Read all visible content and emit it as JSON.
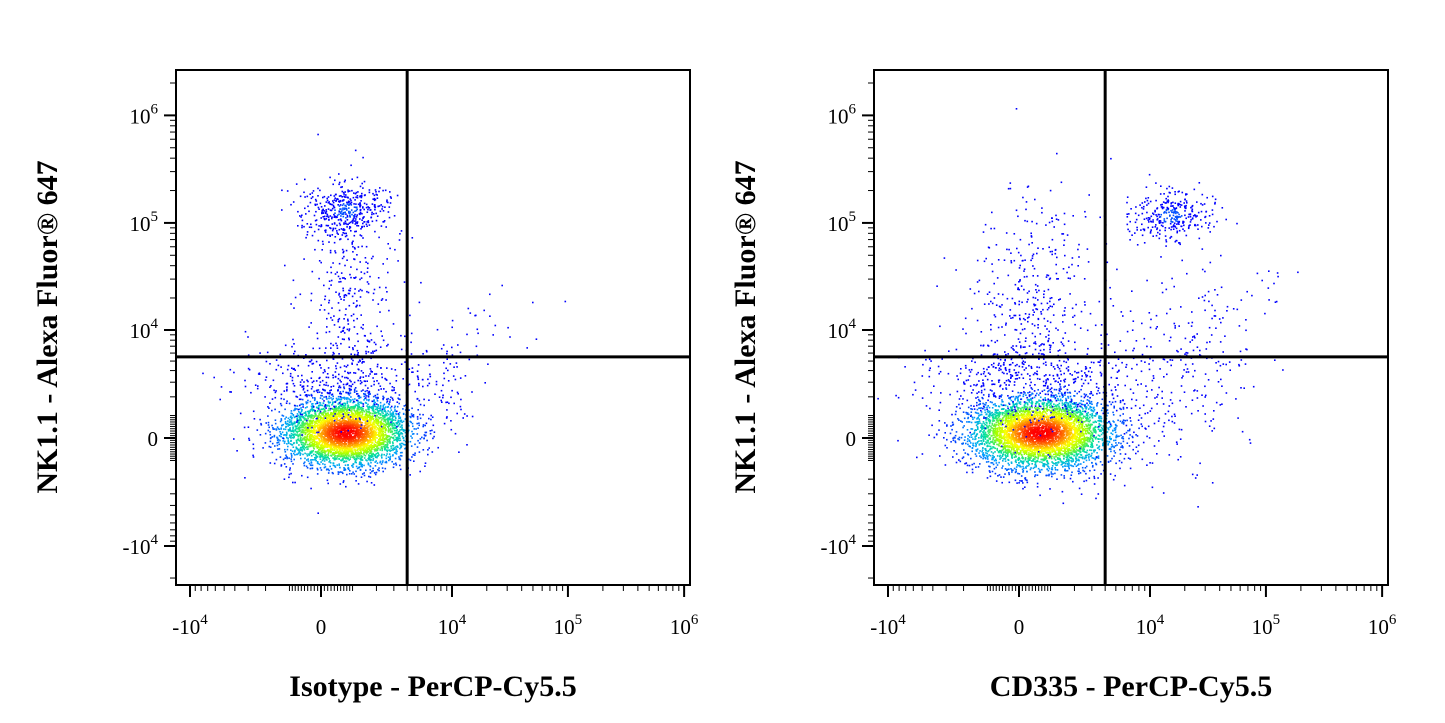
{
  "chart_data": [
    {
      "type": "scatter",
      "subtype": "flow-cytometry-density-dot-plot",
      "xlabel": "Isotype - PerCP-Cy5.5",
      "ylabel": "NK1.1 - Alexa Fluor® 647",
      "x_scale": "biexponential",
      "y_scale": "biexponential",
      "xlim": [
        -20000,
        2000000
      ],
      "ylim": [
        -20000,
        3000000
      ],
      "x_ticks": [
        {
          "value": -10000,
          "base": "-10",
          "exp": "4"
        },
        {
          "value": 0,
          "base": "0",
          "exp": ""
        },
        {
          "value": 10000,
          "base": "10",
          "exp": "4"
        },
        {
          "value": 100000,
          "base": "10",
          "exp": "5"
        },
        {
          "value": 1000000,
          "base": "10",
          "exp": "6"
        }
      ],
      "y_ticks": [
        {
          "value": -10000,
          "base": "-10",
          "exp": "4"
        },
        {
          "value": 0,
          "base": "0",
          "exp": ""
        },
        {
          "value": 10000,
          "base": "10",
          "exp": "4"
        },
        {
          "value": 100000,
          "base": "10",
          "exp": "5"
        },
        {
          "value": 1000000,
          "base": "10",
          "exp": "6"
        }
      ],
      "quadrant_gate": {
        "x": 4000,
        "y": 5500
      },
      "populations": [
        {
          "x_center": 600,
          "y_center": 0,
          "density": "high"
        },
        {
          "x_center": 700,
          "y_center": 130000,
          "density": "medium"
        },
        {
          "x_center": 10000,
          "y_center": 8000,
          "density": "sparse"
        }
      ],
      "color_scale": [
        "#0000ff",
        "#00a0ff",
        "#00e0a0",
        "#a0ff00",
        "#ffff00",
        "#ff8000",
        "#ff0000"
      ]
    },
    {
      "type": "scatter",
      "subtype": "flow-cytometry-density-dot-plot",
      "xlabel": "CD335 - PerCP-Cy5.5",
      "ylabel": "NK1.1 - Alexa Fluor® 647",
      "x_scale": "biexponential",
      "y_scale": "biexponential",
      "xlim": [
        -20000,
        2000000
      ],
      "ylim": [
        -20000,
        3000000
      ],
      "x_ticks": [
        {
          "value": -10000,
          "base": "-10",
          "exp": "4"
        },
        {
          "value": 0,
          "base": "0",
          "exp": ""
        },
        {
          "value": 10000,
          "base": "10",
          "exp": "4"
        },
        {
          "value": 100000,
          "base": "10",
          "exp": "5"
        },
        {
          "value": 1000000,
          "base": "10",
          "exp": "6"
        }
      ],
      "y_ticks": [
        {
          "value": -10000,
          "base": "-10",
          "exp": "4"
        },
        {
          "value": 0,
          "base": "0",
          "exp": ""
        },
        {
          "value": 10000,
          "base": "10",
          "exp": "4"
        },
        {
          "value": 100000,
          "base": "10",
          "exp": "5"
        },
        {
          "value": 1000000,
          "base": "10",
          "exp": "6"
        }
      ],
      "quadrant_gate": {
        "x": 4000,
        "y": 5500
      },
      "populations": [
        {
          "x_center": 300,
          "y_center": 0,
          "density": "high"
        },
        {
          "x_center": 15000,
          "y_center": 120000,
          "density": "medium"
        },
        {
          "x_center": 300,
          "y_center": 12000,
          "density": "sparse"
        },
        {
          "x_center": 20000,
          "y_center": 3000,
          "density": "sparse"
        }
      ],
      "color_scale": [
        "#0000ff",
        "#00a0ff",
        "#00e0a0",
        "#a0ff00",
        "#ffff00",
        "#ff8000",
        "#ff0000"
      ]
    }
  ]
}
